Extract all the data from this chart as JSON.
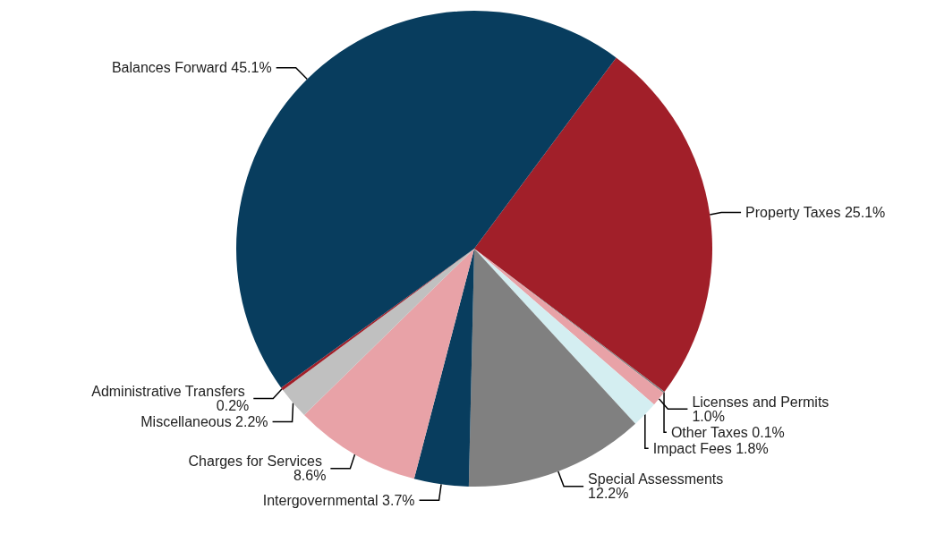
{
  "chart_data": {
    "type": "pie",
    "categories": [
      "Property Taxes",
      "Other Taxes",
      "Licenses and Permits",
      "Impact Fees",
      "Special Assessments",
      "Intergovernmental",
      "Charges for Services",
      "Miscellaneous",
      "Administrative Transfers",
      "Balances Forward"
    ],
    "values": [
      25.1,
      0.1,
      1.0,
      1.8,
      12.2,
      3.7,
      8.6,
      2.2,
      0.2,
      45.1
    ],
    "value_labels": [
      "25.1%",
      "0.1%",
      "1.0%",
      "1.8%",
      "12.2%",
      "3.7%",
      "8.6%",
      "2.2%",
      "0.2%",
      "45.1%"
    ],
    "colors": [
      "#a11f29",
      "#7f7f7f",
      "#e8a2a7",
      "#d4eef1",
      "#808080",
      "#083d5e",
      "#e8a2a7",
      "#c0c0c0",
      "#a11f29",
      "#083d5e"
    ],
    "legend": false
  }
}
